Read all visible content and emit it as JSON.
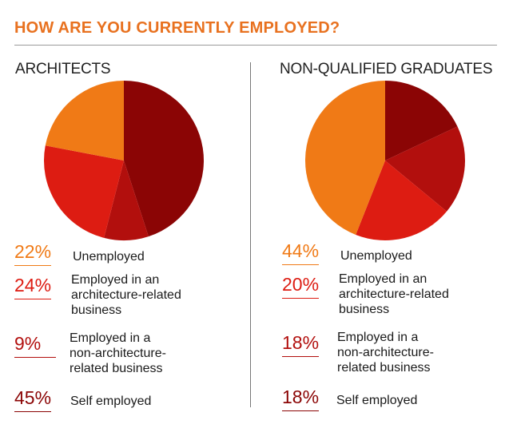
{
  "title": "HOW ARE YOU CURRENTLY EMPLOYED?",
  "colors": {
    "title": "#e8711f",
    "unemployed": "#f07a16",
    "architecture_related": "#dd1c12",
    "non_architecture_related": "#b20f0d",
    "self_employed": "#8b0505"
  },
  "chart_data": [
    {
      "type": "pie",
      "title": "ARCHITECTS",
      "slices": [
        {
          "label": "Unemployed",
          "value": 22,
          "display": "22%",
          "line1": "Unemployed",
          "line2": "",
          "line3": "",
          "color": "#f07a16"
        },
        {
          "label": "Employed in an architecture-related business",
          "value": 24,
          "display": "24%",
          "line1": "Employed in an",
          "line2": "architecture-related",
          "line3": "business",
          "color": "#dd1c12"
        },
        {
          "label": "Employed in a non-architecture-related business",
          "value": 9,
          "display": "9%",
          "line1": "Employed in a",
          "line2": "non-architecture-",
          "line3": "related business",
          "color": "#b20f0d"
        },
        {
          "label": "Self employed",
          "value": 45,
          "display": "45%",
          "line1": "Self employed",
          "line2": "",
          "line3": "",
          "color": "#8b0505"
        }
      ]
    },
    {
      "type": "pie",
      "title": "NON-QUALIFIED GRADUATES",
      "slices": [
        {
          "label": "Unemployed",
          "value": 44,
          "display": "44%",
          "line1": "Unemployed",
          "line2": "",
          "line3": "",
          "color": "#f07a16"
        },
        {
          "label": "Employed in an architecture-related business",
          "value": 20,
          "display": "20%",
          "line1": "Employed in an",
          "line2": "architecture-related",
          "line3": "business",
          "color": "#dd1c12"
        },
        {
          "label": "Employed in a non-architecture-related business",
          "value": 18,
          "display": "18%",
          "line1": "Employed in a",
          "line2": "non-architecture-",
          "line3": "related business",
          "color": "#b20f0d"
        },
        {
          "label": "Self employed",
          "value": 18,
          "display": "18%",
          "line1": "Self employed",
          "line2": "",
          "line3": "",
          "color": "#8b0505"
        }
      ]
    }
  ]
}
